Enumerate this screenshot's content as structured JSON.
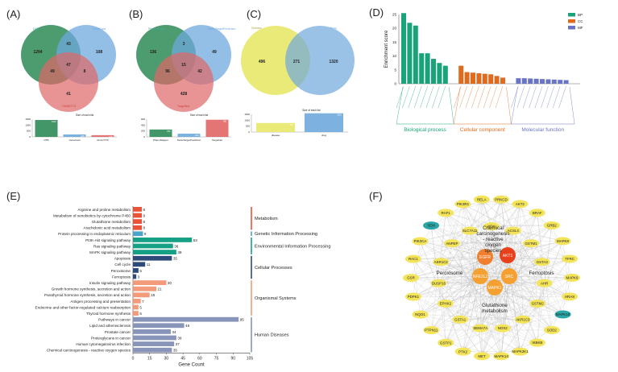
{
  "panels": {
    "A": "(A)",
    "B": "(B)",
    "C": "(C)",
    "D": "(D)",
    "E": "(E)",
    "F": "(F)"
  },
  "colors": {
    "green": "#2e8b57",
    "blue": "#6fa8dc",
    "red": "#e06666",
    "yellow": "#e8e86a",
    "teal": "#1aa37a",
    "orange": "#e06a1e",
    "purple": "#6a74c4",
    "metab": "#e8533a",
    "genetic": "#4aa3c8",
    "env": "#16a085",
    "cell": "#2e4a7a",
    "org": "#f29a7a",
    "human": "#8894b8"
  },
  "chart_data": [
    {
      "type": "venn",
      "panel": "A",
      "sets": [
        "DTB",
        "GeneCard",
        "OMIM/TTD"
      ],
      "regions": {
        "a_only": 1294,
        "b_only": 108,
        "c_only": 41,
        "ab": 43,
        "ac": 49,
        "bc": 8,
        "abc": 47
      },
      "mini_bar": {
        "title": "Size of each list",
        "categories": [
          "DTB",
          "GeneCard",
          "Omim/TTD"
        ],
        "values": [
          1433,
          206,
          145
        ],
        "yticks": [
          1500,
          1000,
          500,
          0
        ]
      }
    },
    {
      "type": "venn",
      "panel": "B",
      "sets": [
        "PharmMapper",
        "SwissTargetPrediction",
        "TargetNet"
      ],
      "regions": {
        "a_only": 136,
        "b_only": 49,
        "c_only": 428,
        "ab": 3,
        "ac": 96,
        "bc": 42,
        "abc": 15
      },
      "mini_bar": {
        "title": "Size of each list",
        "categories": [
          "PharmMapper",
          "SwissTargetPrediction",
          "TargetNet"
        ],
        "values": [
          250,
          109,
          581
        ],
        "yticks": [
          600,
          400,
          200,
          0
        ]
      }
    },
    {
      "type": "venn",
      "panel": "C",
      "sets": [
        "Disease",
        "Drug"
      ],
      "regions": {
        "a_only": 496,
        "b_only": 1320,
        "ab": 271
      },
      "mini_bar": {
        "title": "Size of each list",
        "categories": [
          "disease",
          "drug"
        ],
        "values": [
          767,
          1591
        ],
        "yticks": [
          1500,
          1000,
          500,
          0
        ]
      }
    },
    {
      "type": "bar",
      "panel": "D",
      "ylabel": "Enrichment score",
      "yticks": [
        0,
        5,
        10,
        15,
        20,
        25
      ],
      "legend": [
        "BP",
        "CC",
        "MF"
      ],
      "groups": [
        "Biological process",
        "Cellular component",
        "Molecular function"
      ],
      "series": [
        {
          "name": "BP",
          "values": [
            25.5,
            22,
            21,
            11,
            11,
            9,
            7.5,
            6.5
          ]
        },
        {
          "name": "CC",
          "values": [
            6.5,
            4.2,
            4,
            3.8,
            3.6,
            3.4,
            2.8,
            2.2
          ]
        },
        {
          "name": "MF",
          "values": [
            2,
            2,
            1.9,
            1.8,
            1.7,
            1.6,
            1.5,
            1.4,
            1.3
          ]
        }
      ]
    },
    {
      "type": "bar",
      "panel": "E",
      "orientation": "horizontal",
      "xlabel": "Gene Count",
      "xticks": [
        0,
        15,
        30,
        45,
        60,
        75,
        90,
        105
      ],
      "categories": [
        "Arginine and proline metabolism",
        "Metabolism of xenobiotics by cytochrome P450",
        "Glutathione metabolism",
        "Arachidonic acid metabolism",
        "Protein processing in endoplasmic reticulum",
        "PI3K-Akt signaling pathway",
        "Ras signaling pathway",
        "MAPK signaling pathway",
        "Apoptosis",
        "Cell cycle",
        "Peroxisome",
        "Ferroptosis",
        "Insulin signaling pathway",
        "Growth hormone synthesis, secretion and action",
        "Parathyroid hormone synthesis, secretion and action",
        "Antigen processing and presentation",
        "Endocrine and other factor-regulated calcium reabsorption",
        "Thyroid hormone synthesis",
        "Pathways in cancer",
        "Lipid and atherosclerosis",
        "Prostate cancer",
        "Proteoglycans in cancer",
        "Human cytomegalovirus infection",
        "Chemical carcinogenesis - reactive oxygen species"
      ],
      "values": [
        8,
        8,
        8,
        8,
        9,
        53,
        36,
        39,
        35,
        11,
        5,
        3,
        30,
        21,
        15,
        7,
        5,
        5,
        95,
        46,
        34,
        39,
        37,
        35
      ],
      "groups": [
        "metab",
        "metab",
        "metab",
        "metab",
        "genetic",
        "env",
        "env",
        "env",
        "cell",
        "cell",
        "cell",
        "cell",
        "org",
        "org",
        "org",
        "org",
        "org",
        "org",
        "human",
        "human",
        "human",
        "human",
        "human",
        "human"
      ],
      "group_labels": {
        "metab": "Metabolism",
        "genetic": "Genetic Information Processing",
        "env": "Environmental Information Processing",
        "cell": "Cellular Processes",
        "org": "Organismal Systems",
        "human": "Human Diseases"
      }
    }
  ],
  "network": {
    "center_labels": [
      "Chemical carcinogenesis - reactive oxygen species",
      "Peroxisome",
      "Ferroptosis",
      "Glutathione metabolism"
    ],
    "core": [
      "EGFR",
      "AKT1",
      "NFE2L2",
      "SRC",
      "MAPK1"
    ],
    "ring": [
      "PRKCD",
      "AKT2",
      "BRAF",
      "GRB2",
      "MAPK8",
      "TFRC",
      "MAPK9",
      "HRAS",
      "MAPK10",
      "SOD2",
      "IKBKB",
      "MAPK2K1",
      "MAPK14",
      "MET",
      "PTK2",
      "GSTP1",
      "PTPN11",
      "NQO1",
      "PDPK1",
      "GSR",
      "RAC1",
      "PIK3CA",
      "SEM",
      "RAF1",
      "PIK3R1",
      "RELA"
    ],
    "inner": [
      "XDH",
      "ACSL4",
      "GSTM1",
      "GSTA3",
      "AHR",
      "GSTM2",
      "AKR1C3",
      "NOS2",
      "SEMA7A",
      "GSTA1",
      "EPHX2",
      "DUSP16",
      "AKR1C2",
      "ANPEP",
      "SLC7A11"
    ],
    "highlight": [
      "SEM",
      "MAPK10"
    ]
  }
}
